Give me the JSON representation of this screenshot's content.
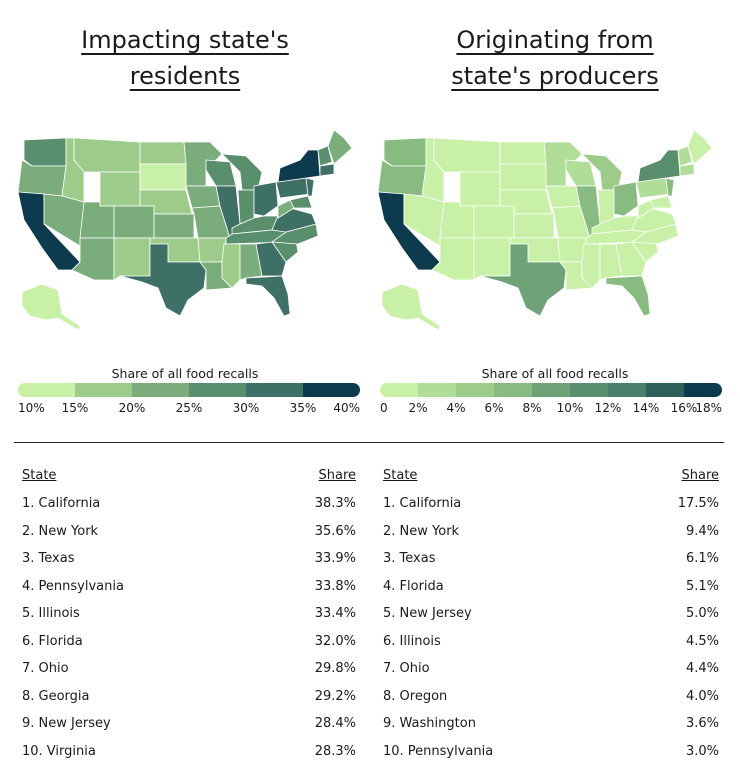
{
  "maps": [
    {
      "title_line1": "Impacting state's",
      "title_line2": "residents",
      "legend_title": "Share of all food recalls",
      "legend_ticks": [
        "10%",
        "15%",
        "20%",
        "25%",
        "30%",
        "35%",
        "40%"
      ],
      "legend_colors": [
        "#c8f0a6",
        "#9ccb8a",
        "#7bad7c",
        "#5a8f6e",
        "#3f7066",
        "#0e3a4e"
      ],
      "table_headers": {
        "state": "State",
        "share": "Share"
      },
      "rows": [
        {
          "state": "1. California",
          "share": "38.3%"
        },
        {
          "state": "2. New York",
          "share": "35.6%"
        },
        {
          "state": "3. Texas",
          "share": "33.9%"
        },
        {
          "state": "4. Pennsylvania",
          "share": "33.8%"
        },
        {
          "state": "5. Illinois",
          "share": "33.4%"
        },
        {
          "state": "6. Florida",
          "share": "32.0%"
        },
        {
          "state": "7. Ohio",
          "share": "29.8%"
        },
        {
          "state": "8. Georgia",
          "share": "29.2%"
        },
        {
          "state": "9. New Jersey",
          "share": "28.4%"
        },
        {
          "state": "10. Virginia",
          "share": "28.3%"
        }
      ]
    },
    {
      "title_line1": "Originating from",
      "title_line2": "state's producers",
      "legend_title": "Share of all food recalls",
      "legend_ticks": [
        "0",
        "2%",
        "4%",
        "6%",
        "8%",
        "10%",
        "12%",
        "14%",
        "16%",
        "18%"
      ],
      "legend_colors": [
        "#c8f0a6",
        "#b0dd98",
        "#9ccb8a",
        "#88bb80",
        "#6fa377",
        "#5a8f6e",
        "#4a7d6a",
        "#2e5f5a",
        "#0e3a4e"
      ],
      "table_headers": {
        "state": "State",
        "share": "Share"
      },
      "rows": [
        {
          "state": "1. California",
          "share": "17.5%"
        },
        {
          "state": "2. New York",
          "share": "9.4%"
        },
        {
          "state": "3. Texas",
          "share": "6.1%"
        },
        {
          "state": "4. Florida",
          "share": "5.1%"
        },
        {
          "state": "5. New Jersey",
          "share": "5.0%"
        },
        {
          "state": "6. Illinois",
          "share": "4.5%"
        },
        {
          "state": "7. Ohio",
          "share": "4.4%"
        },
        {
          "state": "8. Oregon",
          "share": "4.0%"
        },
        {
          "state": "9. Washington",
          "share": "3.6%"
        },
        {
          "state": "10. Pennsylvania",
          "share": "3.0%"
        }
      ]
    }
  ]
}
